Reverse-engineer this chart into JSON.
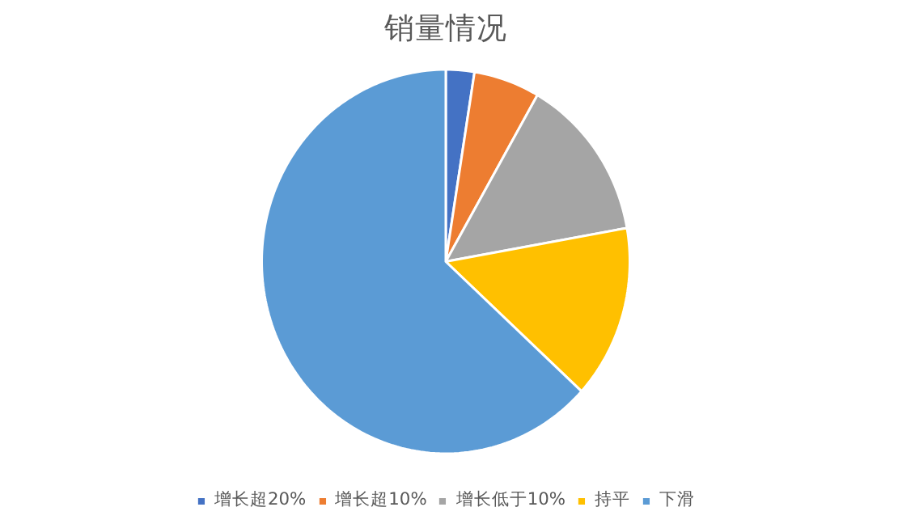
{
  "chart_data": {
    "type": "pie",
    "title": "销量情况",
    "categories": [
      "增长超20%",
      "增长超10%",
      "增长低于10%",
      "持平",
      "下滑"
    ],
    "values": [
      2.5,
      5.8,
      13.9,
      14.6,
      63.2
    ],
    "colors": [
      "#4472c4",
      "#ed7d31",
      "#a5a5a5",
      "#ffc000",
      "#5b9bd5"
    ],
    "legend": "bottom"
  }
}
